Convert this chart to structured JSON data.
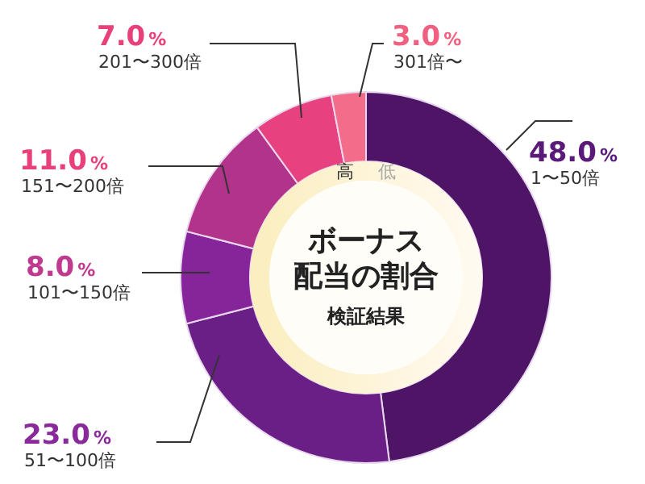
{
  "chart_data": {
    "type": "donut",
    "title": "ボーナス配当の割合",
    "subtitle": "検証結果",
    "categories": [
      "1〜50倍",
      "51〜100倍",
      "101〜150倍",
      "151〜200倍",
      "201〜300倍",
      "301倍〜"
    ],
    "values": [
      48.0,
      23.0,
      8.0,
      11.0,
      7.0,
      3.0
    ],
    "colors": [
      "#4e1466",
      "#6a1f86",
      "#86259a",
      "#b2338a",
      "#e8417f",
      "#f36d8a"
    ],
    "value_labels": [
      "48.0%",
      "23.0%",
      "8.0%",
      "11.0%",
      "7.0%",
      "3.0%"
    ],
    "annotations": [
      "高",
      "低"
    ]
  }
}
